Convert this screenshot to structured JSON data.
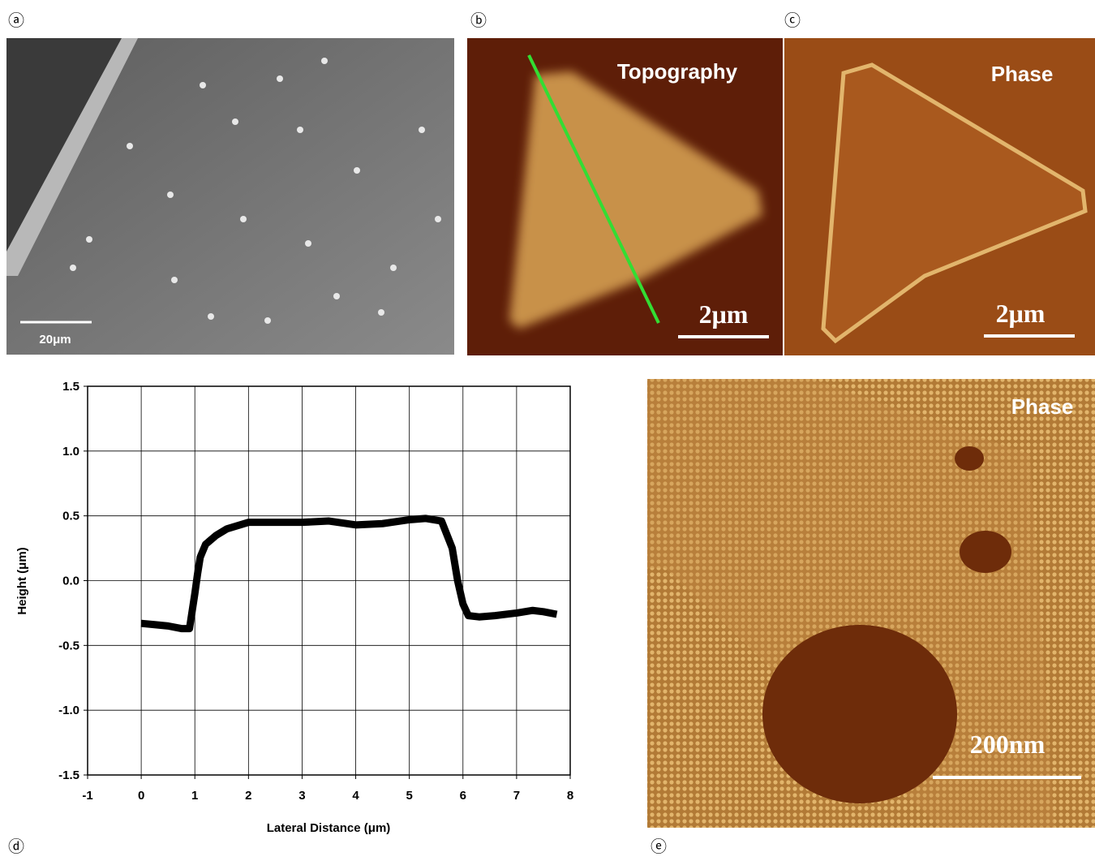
{
  "panels": {
    "a": {
      "label": "ⓐ",
      "scale_bar": "20μm"
    },
    "b": {
      "label": "ⓑ",
      "title": "Topography",
      "scale_bar": "2μm"
    },
    "c": {
      "label": "ⓒ",
      "title": "Phase",
      "scale_bar": "2μm"
    },
    "d": {
      "label": "ⓓ"
    },
    "e": {
      "label": "ⓔ",
      "title": "Phase",
      "scale_bar": "200nm"
    }
  },
  "chart_data": {
    "type": "line",
    "x_label": "Lateral Distance (μm)",
    "y_label": "Height (μm)",
    "x": [
      0,
      0.25,
      0.5,
      0.75,
      0.9,
      1.0,
      1.05,
      1.1,
      1.2,
      1.4,
      1.6,
      2.0,
      2.5,
      3.0,
      3.5,
      4.0,
      4.5,
      5.0,
      5.3,
      5.6,
      5.8,
      5.9,
      6.0,
      6.1,
      6.3,
      6.6,
      7.0,
      7.3,
      7.5,
      7.75
    ],
    "series": [
      {
        "color": "#000000",
        "values": [
          -0.33,
          -0.34,
          -0.35,
          -0.37,
          -0.37,
          -0.1,
          0.05,
          0.18,
          0.28,
          0.35,
          0.4,
          0.45,
          0.45,
          0.45,
          0.46,
          0.43,
          0.44,
          0.47,
          0.48,
          0.46,
          0.25,
          0.0,
          -0.18,
          -0.27,
          -0.28,
          -0.27,
          -0.25,
          -0.23,
          -0.24,
          -0.26
        ]
      }
    ],
    "xlim": [
      -1,
      8
    ],
    "xticks": [
      -1,
      0,
      1,
      2,
      3,
      4,
      5,
      6,
      7,
      8
    ],
    "ylim": [
      -1.5,
      1.5
    ],
    "yticks": [
      -1.5,
      {
        "value": -1,
        "label": "-1.0"
      },
      -0.5,
      {
        "value": 0,
        "label": "0.0"
      },
      0.5,
      {
        "value": 1,
        "label": "1.0"
      },
      1.5
    ],
    "grid": true
  }
}
